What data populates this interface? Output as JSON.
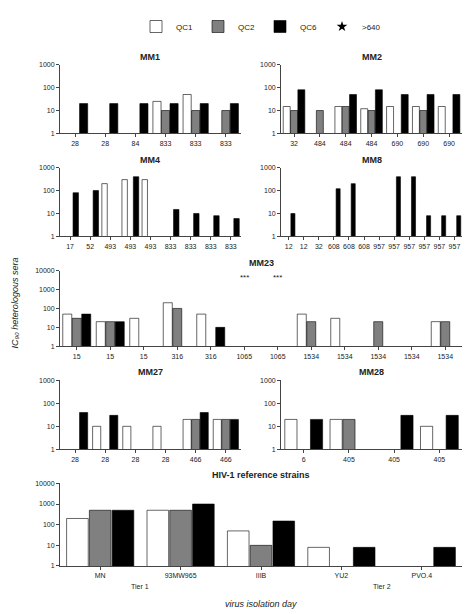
{
  "chart_data": [
    {
      "type": "bar",
      "title": "MM1",
      "categories": [
        "28",
        "28",
        "84",
        "833",
        "833",
        "833"
      ],
      "series": [
        {
          "name": "QC1",
          "color": "#ffffff",
          "values": [
            null,
            null,
            null,
            25,
            50,
            null
          ]
        },
        {
          "name": "QC2",
          "color": "#808080",
          "values": [
            null,
            null,
            null,
            10,
            10,
            10
          ]
        },
        {
          "name": "QC6",
          "color": "#000000",
          "values": [
            20,
            20,
            20,
            20,
            20,
            20
          ]
        }
      ],
      "log": "y",
      "ylim": [
        1,
        1000
      ],
      "yticks": [
        1,
        10,
        100,
        1000
      ],
      "grid": false
    },
    {
      "type": "bar",
      "title": "MM2",
      "categories": [
        "32",
        "484",
        "484",
        "484",
        "690",
        "690",
        "690"
      ],
      "series": [
        {
          "name": "QC1",
          "color": "#ffffff",
          "values": [
            15,
            null,
            15,
            12,
            15,
            15,
            15
          ]
        },
        {
          "name": "QC2",
          "color": "#808080",
          "values": [
            10,
            10,
            15,
            10,
            null,
            10,
            null
          ]
        },
        {
          "name": "QC6",
          "color": "#000000",
          "values": [
            80,
            null,
            50,
            80,
            50,
            50,
            50
          ]
        }
      ],
      "log": "y",
      "ylim": [
        1,
        1000
      ],
      "yticks": [
        1,
        10,
        100,
        1000
      ],
      "grid": false
    },
    {
      "type": "bar",
      "title": "MM4",
      "categories": [
        "17",
        "52",
        "493",
        "493",
        "493",
        "833",
        "833",
        "833",
        "833"
      ],
      "series": [
        {
          "name": "QC1",
          "color": "#ffffff",
          "values": [
            null,
            null,
            200,
            300,
            300,
            null,
            null,
            null,
            null
          ]
        },
        {
          "name": "QC2",
          "color": "#808080",
          "values": [
            null,
            null,
            null,
            null,
            null,
            null,
            null,
            null,
            null
          ]
        },
        {
          "name": "QC6",
          "color": "#000000",
          "values": [
            80,
            100,
            null,
            400,
            null,
            15,
            10,
            8,
            6
          ]
        }
      ],
      "log": "y",
      "ylim": [
        1,
        1000
      ],
      "yticks": [
        1,
        10,
        100,
        1000
      ],
      "grid": false
    },
    {
      "type": "bar",
      "title": "MM8",
      "categories": [
        "12",
        "12",
        "32",
        "608",
        "608",
        "608",
        "957",
        "957",
        "957",
        "957",
        "957",
        "957"
      ],
      "series": [
        {
          "name": "QC1",
          "color": "#ffffff",
          "values": [
            null,
            null,
            null,
            null,
            null,
            null,
            null,
            null,
            null,
            null,
            null,
            null
          ]
        },
        {
          "name": "QC2",
          "color": "#808080",
          "values": [
            null,
            null,
            null,
            null,
            null,
            null,
            null,
            null,
            null,
            null,
            null,
            null
          ]
        },
        {
          "name": "QC6",
          "color": "#000000",
          "values": [
            10,
            null,
            null,
            120,
            200,
            null,
            null,
            400,
            400,
            8,
            8,
            8
          ]
        }
      ],
      "log": "y",
      "ylim": [
        1,
        1000
      ],
      "yticks": [
        1,
        10,
        100,
        1000
      ],
      "grid": false
    },
    {
      "type": "bar",
      "title": "MM23",
      "categories": [
        "15",
        "15",
        "15",
        "316",
        "316",
        "1065",
        "1065",
        "1534",
        "1534",
        "1534",
        "1534",
        "1534"
      ],
      "series": [
        {
          "name": "QC1",
          "color": "#ffffff",
          "values": [
            50,
            20,
            30,
            200,
            50,
            null,
            null,
            50,
            30,
            null,
            null,
            20
          ]
        },
        {
          "name": "QC2",
          "color": "#808080",
          "values": [
            30,
            20,
            null,
            100,
            null,
            null,
            null,
            20,
            null,
            20,
            null,
            20
          ]
        },
        {
          "name": "QC6",
          "color": "#000000",
          "values": [
            50,
            20,
            null,
            null,
            10,
            null,
            null,
            null,
            null,
            null,
            null,
            null
          ]
        },
        {
          "name": ">640",
          "type": "scatter",
          "marker": "star",
          "color": "#000000",
          "values": [
            null,
            null,
            null,
            null,
            null,
            null,
            null,
            null,
            null,
            null,
            null,
            null
          ]
        }
      ],
      "annotations": [
        {
          "text": "***",
          "x": 5
        },
        {
          "text": "***",
          "x": 6
        }
      ],
      "log": "y",
      "ylim": [
        1,
        10000
      ],
      "yticks": [
        1,
        10,
        100,
        1000,
        10000
      ],
      "grid": false
    },
    {
      "type": "bar",
      "title": "MM27",
      "categories": [
        "28",
        "28",
        "28",
        "28",
        "466",
        "466"
      ],
      "series": [
        {
          "name": "QC1",
          "color": "#ffffff",
          "values": [
            null,
            10,
            10,
            10,
            20,
            20
          ]
        },
        {
          "name": "QC2",
          "color": "#808080",
          "values": [
            null,
            null,
            null,
            null,
            20,
            20
          ]
        },
        {
          "name": "QC6",
          "color": "#000000",
          "values": [
            40,
            30,
            null,
            null,
            40,
            20
          ]
        }
      ],
      "log": "y",
      "ylim": [
        1,
        1000
      ],
      "yticks": [
        1,
        10,
        100,
        1000
      ],
      "grid": false
    },
    {
      "type": "bar",
      "title": "MM28",
      "categories": [
        "6",
        "405",
        "405",
        "405"
      ],
      "series": [
        {
          "name": "QC1",
          "color": "#ffffff",
          "values": [
            20,
            20,
            null,
            10
          ]
        },
        {
          "name": "QC2",
          "color": "#808080",
          "values": [
            null,
            20,
            null,
            null
          ]
        },
        {
          "name": "QC6",
          "color": "#000000",
          "values": [
            20,
            null,
            30,
            30
          ]
        }
      ],
      "log": "y",
      "ylim": [
        1,
        1000
      ],
      "yticks": [
        1,
        10,
        100,
        1000
      ],
      "grid": false
    },
    {
      "type": "bar",
      "title": "HIV-1 reference strains",
      "categories": [
        "MN",
        "93MW965",
        "IIIB",
        "YU2",
        "PVO.4"
      ],
      "series": [
        {
          "name": "QC1",
          "color": "#ffffff",
          "values": [
            200,
            500,
            50,
            8,
            null
          ]
        },
        {
          "name": "QC2",
          "color": "#808080",
          "values": [
            500,
            500,
            10,
            null,
            null
          ]
        },
        {
          "name": "QC6",
          "color": "#000000",
          "values": [
            500,
            1000,
            150,
            8,
            8
          ]
        }
      ],
      "annotations": [
        {
          "text": "Tier 1",
          "categories": [
            "MN",
            "93MW965"
          ]
        },
        {
          "text": "Tier 2",
          "categories": [
            "YU2",
            "PVO.4"
          ]
        }
      ],
      "log": "y",
      "ylim": [
        1,
        10000
      ],
      "yticks": [
        1,
        10,
        100,
        1000,
        10000
      ],
      "grid": false
    }
  ],
  "ylabel": "IC₉₀ heterologous sera",
  "xlabel": "virus isolation day",
  "legend": "top"
}
